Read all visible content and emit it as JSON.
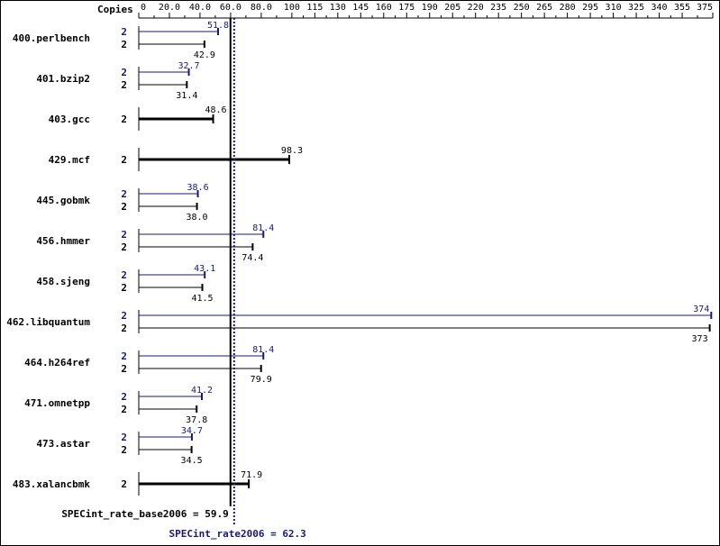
{
  "chart_data": {
    "type": "bar",
    "copies_label": "Copies",
    "x_ticks": [
      "0",
      "20.0",
      "40.0",
      "60.0",
      "80.0",
      "100",
      "115",
      "130",
      "145",
      "160",
      "175",
      "190",
      "205",
      "220",
      "235",
      "250",
      "265",
      "280",
      "295",
      "310",
      "325",
      "340",
      "355",
      "375"
    ],
    "x_tick_values": [
      0,
      20,
      40,
      60,
      80,
      100,
      115,
      130,
      145,
      160,
      175,
      190,
      205,
      220,
      235,
      250,
      265,
      280,
      295,
      310,
      325,
      340,
      355,
      375
    ],
    "xlim": [
      0,
      375
    ],
    "categories": [
      {
        "name": "400.perlbench",
        "peak": 51.8,
        "peak_label": "51.8",
        "base": 42.9,
        "base_label": "42.9",
        "peak_copies": "2",
        "base_copies": "2"
      },
      {
        "name": "401.bzip2",
        "peak": 32.7,
        "peak_label": "32.7",
        "base": 31.4,
        "base_label": "31.4",
        "peak_copies": "2",
        "base_copies": "2"
      },
      {
        "name": "403.gcc",
        "single": 48.6,
        "single_label": "48.6",
        "copies": "2"
      },
      {
        "name": "429.mcf",
        "single": 98.3,
        "single_label": "98.3",
        "copies": "2"
      },
      {
        "name": "445.gobmk",
        "peak": 38.6,
        "peak_label": "38.6",
        "base": 38.0,
        "base_label": "38.0",
        "peak_copies": "2",
        "base_copies": "2"
      },
      {
        "name": "456.hmmer",
        "peak": 81.4,
        "peak_label": "81.4",
        "base": 74.4,
        "base_label": "74.4",
        "peak_copies": "2",
        "base_copies": "2"
      },
      {
        "name": "458.sjeng",
        "peak": 43.1,
        "peak_label": "43.1",
        "base": 41.5,
        "base_label": "41.5",
        "peak_copies": "2",
        "base_copies": "2"
      },
      {
        "name": "462.libquantum",
        "peak": 374,
        "peak_label": "374",
        "base": 373,
        "base_label": "373",
        "peak_copies": "2",
        "base_copies": "2"
      },
      {
        "name": "464.h264ref",
        "peak": 81.4,
        "peak_label": "81.4",
        "base": 79.9,
        "base_label": "79.9",
        "peak_copies": "2",
        "base_copies": "2"
      },
      {
        "name": "471.omnetpp",
        "peak": 41.2,
        "peak_label": "41.2",
        "base": 37.8,
        "base_label": "37.8",
        "peak_copies": "2",
        "base_copies": "2"
      },
      {
        "name": "473.astar",
        "peak": 34.7,
        "peak_label": "34.7",
        "base": 34.5,
        "base_label": "34.5",
        "peak_copies": "2",
        "base_copies": "2"
      },
      {
        "name": "483.xalancbmk",
        "single": 71.9,
        "single_label": "71.9",
        "copies": "2"
      }
    ],
    "base_mean": {
      "value": 59.9,
      "label": "SPECint_rate_base2006 = 59.9"
    },
    "peak_mean": {
      "value": 62.3,
      "label": "SPECint_rate2006 = 62.3"
    },
    "colors": {
      "base": "#000000",
      "peak": "#191970",
      "frame": "#000000",
      "background": "#ffffff"
    }
  }
}
